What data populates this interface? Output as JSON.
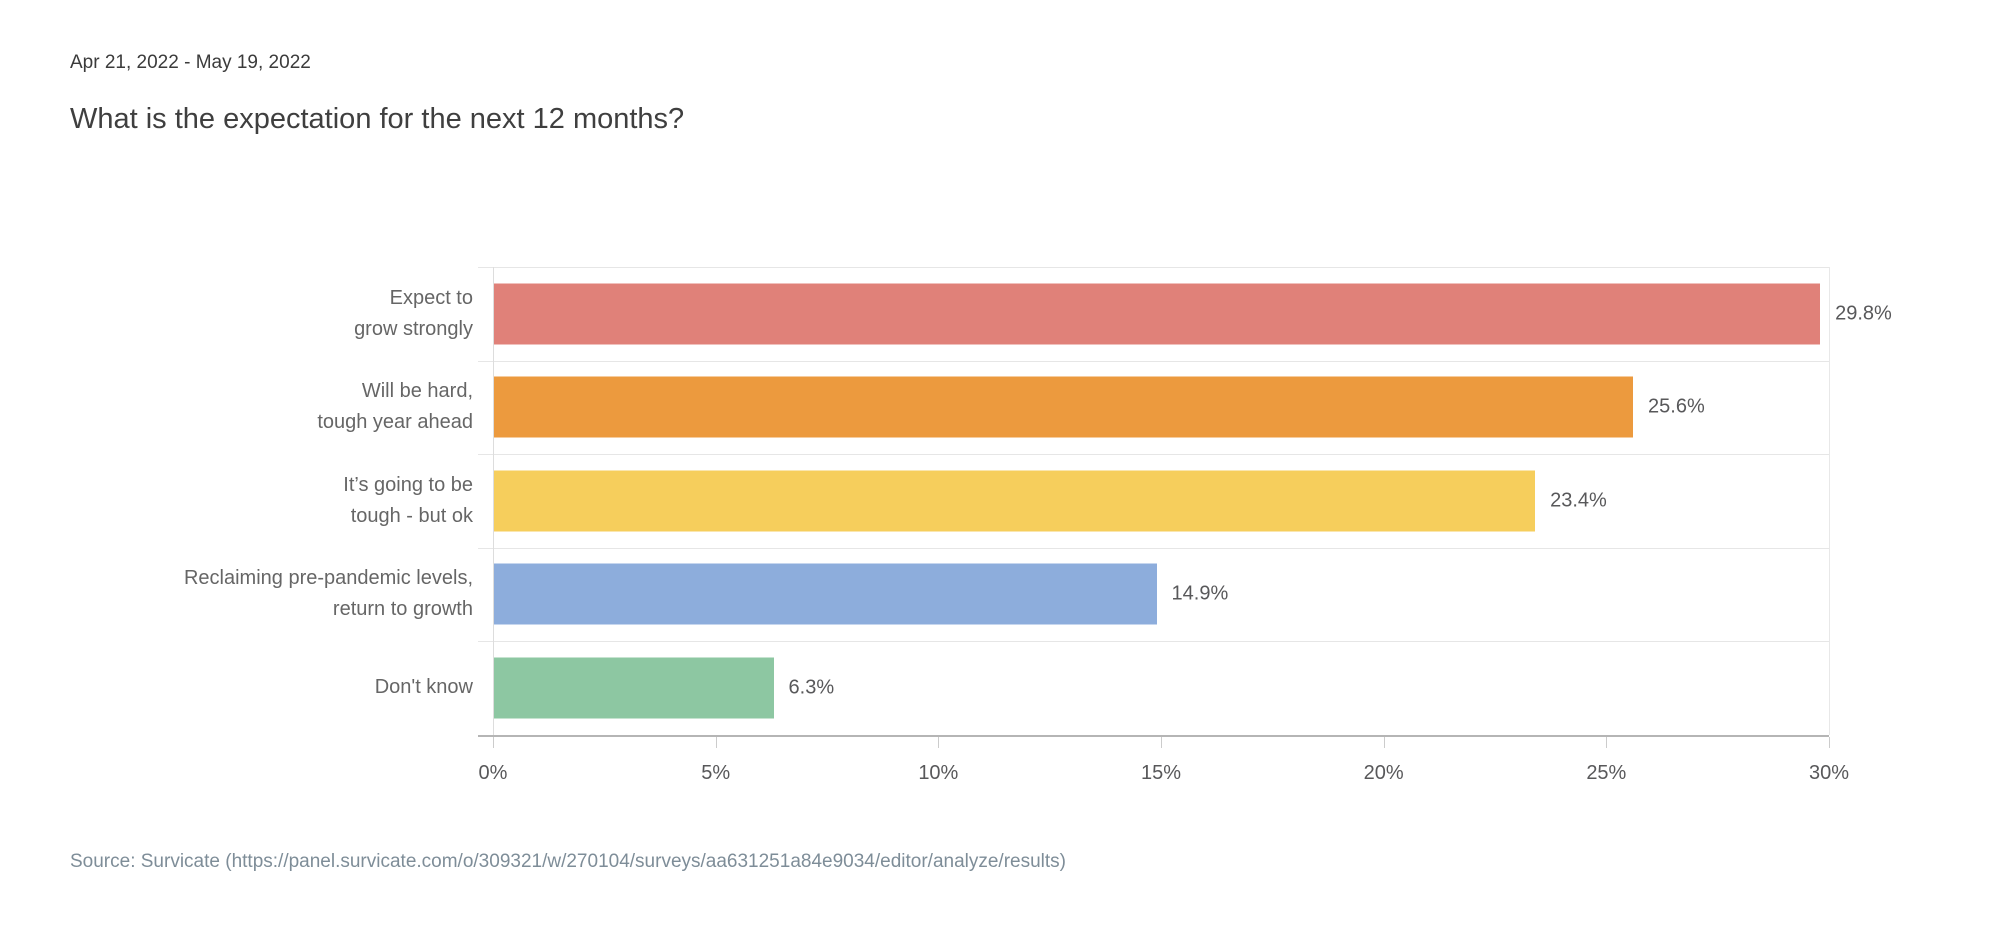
{
  "header": {
    "date_range": "Apr 21, 2022 - May 19, 2022",
    "title": "What is the expectation for the next 12 months?"
  },
  "chart_data": {
    "type": "bar",
    "orientation": "horizontal",
    "title": "What is the expectation for the next 12 months?",
    "categories": [
      "Expect to\ngrow strongly",
      "Will be hard,\ntough year ahead",
      "It’s going to be\ntough - but ok",
      "Reclaiming pre-pandemic levels,\nreturn to growth",
      "Don't know"
    ],
    "values": [
      29.8,
      25.6,
      23.4,
      14.9,
      6.3
    ],
    "value_labels": [
      "29.8%",
      "25.6%",
      "23.4%",
      "14.9%",
      "6.3%"
    ],
    "bar_colors": [
      "#e08179",
      "#ec9a3e",
      "#f6ce5c",
      "#8daddc",
      "#8dc7a2"
    ],
    "x_ticks": [
      "0%",
      "5%",
      "10%",
      "15%",
      "20%",
      "25%",
      "30%"
    ],
    "xlim": [
      0,
      30
    ],
    "xlabel": "",
    "ylabel": "",
    "legend": "none",
    "grid": "horizontal row separators"
  },
  "footer": {
    "source": "Source: Survicate (https://panel.survicate.com/o/309321/w/270104/surveys/aa631251a84e9034/editor/analyze/results)"
  },
  "colors": {
    "background": "#ffffff",
    "title_text": "#3f3f3f",
    "date_text": "#3b3b3b",
    "category_text": "#666666",
    "value_text": "#58585a",
    "tick_text": "#58585a",
    "source_text": "#7e8d98",
    "separator_line": "#e6e6e6",
    "axis_line": "#b5b5b5",
    "y_axis_line": "#dddddd"
  }
}
